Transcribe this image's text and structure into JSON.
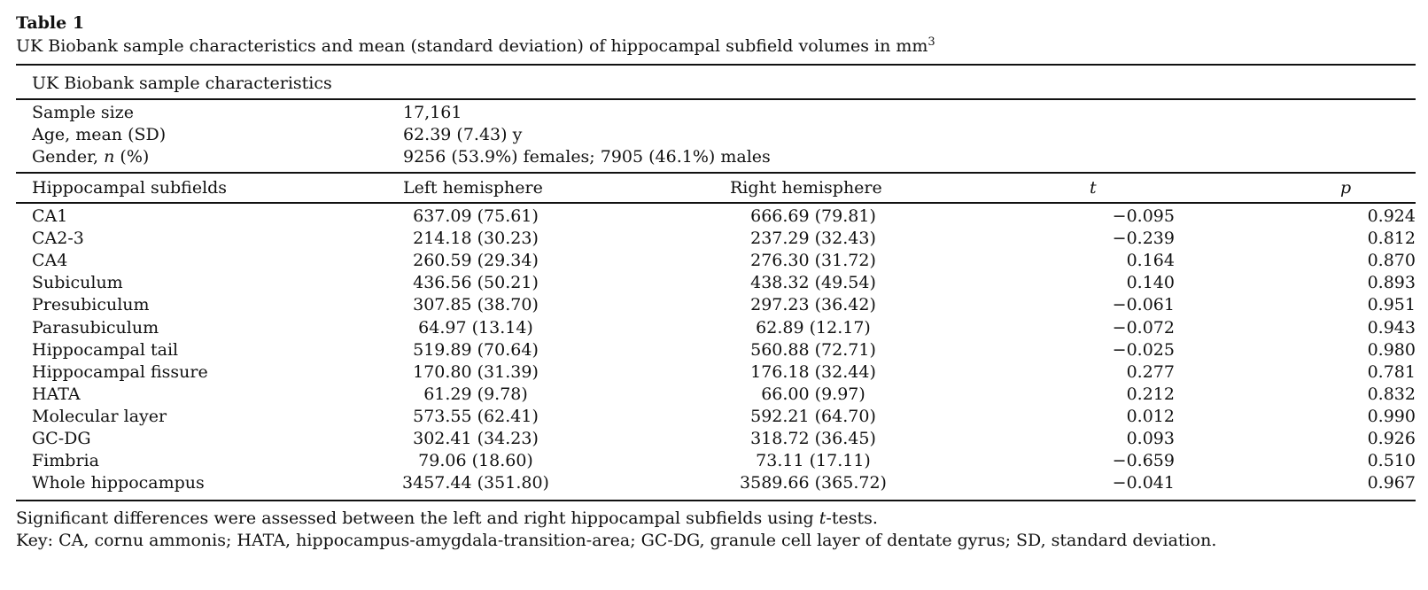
{
  "table": {
    "label": "Table 1",
    "caption": "UK Biobank sample characteristics and mean (standard deviation) of hippocampal subfield volumes in mm",
    "caption_superscript": "3",
    "section_header": "UK Biobank sample characteristics",
    "characteristics": [
      {
        "name": "Sample size",
        "value": "17,161"
      },
      {
        "name": "Age, mean (SD)",
        "value": "62.39 (7.43) y"
      },
      {
        "name_pre": "Gender, ",
        "name_italic": "n",
        "name_post": " (%)",
        "value": "9256 (53.9%) females; 7905 (46.1%) males"
      }
    ],
    "columns": {
      "subfield": "Hippocampal subfields",
      "left": "Left hemisphere",
      "right": "Right hemisphere",
      "t": "t",
      "p": "p"
    },
    "rows": [
      {
        "name": "CA1",
        "left": "637.09 (75.61)",
        "right": "666.69 (79.81)",
        "t": "−0.095",
        "p": "0.924"
      },
      {
        "name": "CA2-3",
        "left": "214.18 (30.23)",
        "right": "237.29 (32.43)",
        "t": "−0.239",
        "p": "0.812"
      },
      {
        "name": "CA4",
        "left": "260.59 (29.34)",
        "right": "276.30 (31.72)",
        "t": "0.164",
        "p": "0.870"
      },
      {
        "name": "Subiculum",
        "left": "436.56 (50.21)",
        "right": "438.32 (49.54)",
        "t": "0.140",
        "p": "0.893"
      },
      {
        "name": "Presubiculum",
        "left": "307.85 (38.70)",
        "right": "297.23 (36.42)",
        "t": "−0.061",
        "p": "0.951"
      },
      {
        "name": "Parasubiculum",
        "left": "64.97 (13.14)",
        "right": "62.89 (12.17)",
        "t": "−0.072",
        "p": "0.943"
      },
      {
        "name": "Hippocampal tail",
        "left": "519.89 (70.64)",
        "right": "560.88 (72.71)",
        "t": "−0.025",
        "p": "0.980"
      },
      {
        "name": "Hippocampal fissure",
        "left": "170.80 (31.39)",
        "right": "176.18 (32.44)",
        "t": "0.277",
        "p": "0.781"
      },
      {
        "name": "HATA",
        "left": "61.29 (9.78)",
        "right": "66.00 (9.97)",
        "t": "0.212",
        "p": "0.832"
      },
      {
        "name": "Molecular layer",
        "left": "573.55 (62.41)",
        "right": "592.21 (64.70)",
        "t": "0.012",
        "p": "0.990"
      },
      {
        "name": "GC-DG",
        "left": "302.41 (34.23)",
        "right": "318.72 (36.45)",
        "t": "0.093",
        "p": "0.926"
      },
      {
        "name": "Fimbria",
        "left": "79.06 (18.60)",
        "right": "73.11 (17.11)",
        "t": "−0.659",
        "p": "0.510"
      },
      {
        "name": "Whole hippocampus",
        "left": "3457.44 (351.80)",
        "right": "3589.66 (365.72)",
        "t": "−0.041",
        "p": "0.967"
      }
    ],
    "footnote1_pre": "Significant differences were assessed between the left and right hippocampal subfields using ",
    "footnote1_italic": "t",
    "footnote1_post": "-tests.",
    "footnote2": "Key: CA, cornu ammonis; HATA, hippocampus-amygdala-transition-area; GC-DG, granule cell layer of dentate gyrus; SD, standard deviation."
  }
}
